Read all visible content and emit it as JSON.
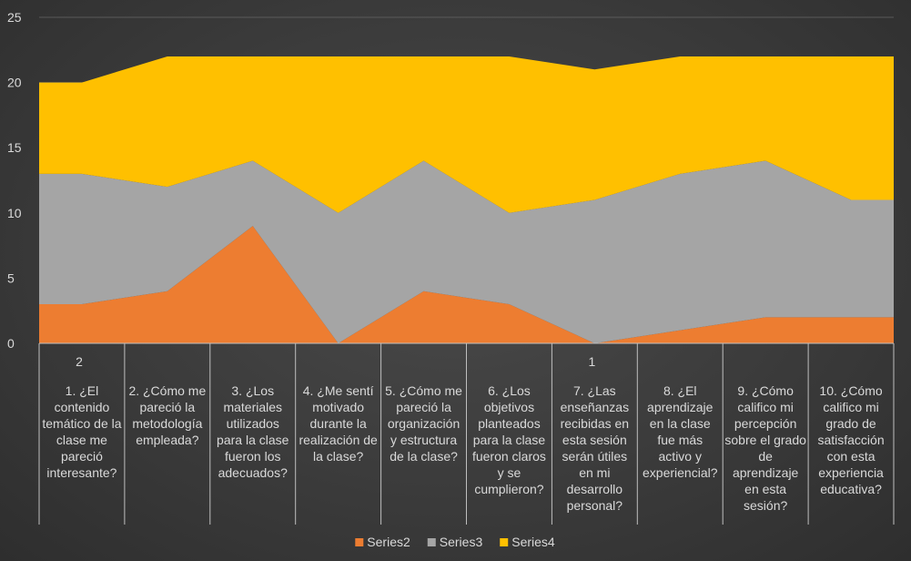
{
  "chart_data": {
    "type": "area",
    "stacked": true,
    "ylim": [
      0,
      25
    ],
    "y_ticks": [
      "0",
      "5",
      "10",
      "15",
      "20",
      "25"
    ],
    "grid": true,
    "legend_position": "bottom",
    "outer_labels": [
      "2",
      "1"
    ],
    "categories": [
      "1. ¿El contenido temático de la clase me pareció interesante?",
      "2. ¿Cómo me pareció la metodología empleada?",
      "3. ¿Los materiales utilizados para la clase fueron los adecuados?",
      "4. ¿Me sentí motivado durante la realización de la clase?",
      "5. ¿Cómo me pareció la organización y estructura de la clase?",
      "6. ¿Los objetivos planteados para la clase fueron claros y se cumplieron?",
      "7. ¿Las enseñanzas recibidas en esta sesión serán útiles en mi desarrollo personal?",
      "8. ¿El aprendizaje en la clase fue más activo y experiencial?",
      "9. ¿Cómo califico mi percepción sobre el grado de aprendizaje en esta sesión?",
      "10. ¿Cómo califico mi grado de satisfacción con esta experiencia educativa?"
    ],
    "series": [
      {
        "name": "Series2",
        "color": "#ed7d31",
        "values": [
          3,
          4,
          9,
          0,
          4,
          3,
          0,
          1,
          2,
          2
        ]
      },
      {
        "name": "Series3",
        "color": "#a5a5a5",
        "values": [
          10,
          8,
          5,
          10,
          10,
          7,
          11,
          12,
          12,
          9
        ]
      },
      {
        "name": "Series4",
        "color": "#ffc000",
        "values": [
          7,
          10,
          8,
          12,
          8,
          12,
          10,
          9,
          8,
          11
        ]
      }
    ]
  }
}
